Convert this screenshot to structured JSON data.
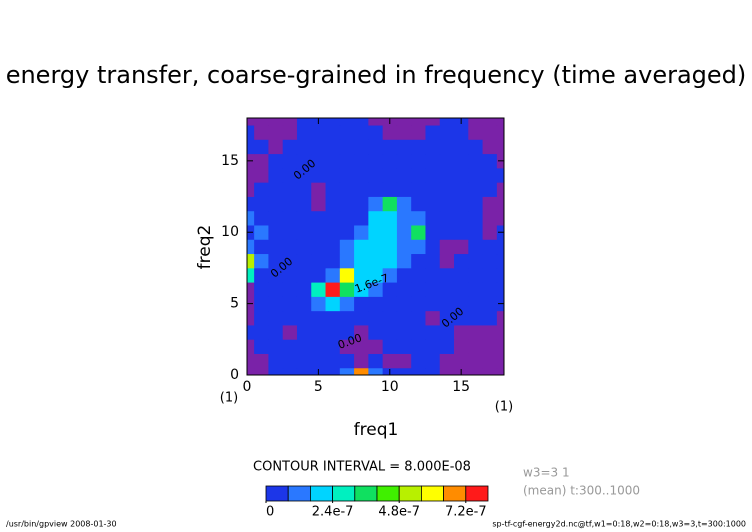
{
  "chart_data": {
    "type": "contour",
    "title": "energy transfer, coarse-grained in frequency (time averaged)",
    "x_label": "freq1",
    "y_label": "freq2",
    "x_unit": "(1)",
    "y_unit": "(1)",
    "x": [
      0,
      1,
      2,
      3,
      4,
      5,
      6,
      7,
      8,
      9,
      10,
      11,
      12,
      13,
      14,
      15,
      16,
      17,
      18
    ],
    "y": [
      0,
      1,
      2,
      3,
      4,
      5,
      6,
      7,
      8,
      9,
      10,
      11,
      12,
      13,
      14,
      15,
      16,
      17,
      18
    ],
    "xlim": [
      0,
      18
    ],
    "ylim": [
      0,
      18
    ],
    "xticks": [
      0,
      5,
      10,
      15
    ],
    "yticks": [
      0,
      5,
      10,
      15
    ],
    "z": [
      [
        -2e-08,
        -2e-08,
        4e-08,
        4e-08,
        4e-08,
        4e-08,
        4e-08,
        1.2e-07,
        6.5e-07,
        1.2e-07,
        4e-08,
        4e-08,
        4e-08,
        4e-08,
        -2e-08,
        -2e-08,
        -2e-08,
        -2e-08,
        -2e-08
      ],
      [
        -2e-08,
        -2e-08,
        4e-08,
        4e-08,
        4e-08,
        4e-08,
        4e-08,
        4e-08,
        -2e-08,
        4e-08,
        -2e-08,
        -2e-08,
        4e-08,
        4e-08,
        -2e-08,
        -2e-08,
        -2e-08,
        -2e-08,
        -2e-08
      ],
      [
        -2e-08,
        4e-08,
        4e-08,
        4e-08,
        4e-08,
        4e-08,
        4e-08,
        -2e-08,
        -2e-08,
        -2e-08,
        4e-08,
        4e-08,
        4e-08,
        4e-08,
        4e-08,
        -2e-08,
        -2e-08,
        -2e-08,
        -2e-08
      ],
      [
        4e-08,
        4e-08,
        4e-08,
        -2e-08,
        4e-08,
        4e-08,
        4e-08,
        4e-08,
        -2e-08,
        4e-08,
        4e-08,
        4e-08,
        4e-08,
        4e-08,
        4e-08,
        -2e-08,
        -2e-08,
        -2e-08,
        -2e-08
      ],
      [
        -2e-08,
        4e-08,
        4e-08,
        4e-08,
        4e-08,
        4e-08,
        4e-08,
        4e-08,
        4e-08,
        4e-08,
        4e-08,
        4e-08,
        4e-08,
        -2e-08,
        4e-08,
        4e-08,
        4e-08,
        4e-08,
        -2e-08
      ],
      [
        -2e-08,
        4e-08,
        4e-08,
        4e-08,
        4e-08,
        1e-07,
        2.3e-07,
        1.4e-07,
        4e-08,
        4e-08,
        4e-08,
        4e-08,
        4e-08,
        4e-08,
        4e-08,
        4e-08,
        4e-08,
        4e-08,
        4e-08
      ],
      [
        -2e-08,
        4e-08,
        4e-08,
        4e-08,
        4e-08,
        3e-07,
        7.5e-07,
        3.9e-07,
        2e-07,
        1e-07,
        4e-08,
        4e-08,
        4e-08,
        4e-08,
        4e-08,
        4e-08,
        4e-08,
        4e-08,
        4e-08
      ],
      [
        3e-07,
        4e-08,
        4e-08,
        4e-08,
        4e-08,
        4e-08,
        1.4e-07,
        6e-07,
        2.3e-07,
        1.7e-07,
        1.4e-07,
        4e-08,
        4e-08,
        4e-08,
        4e-08,
        4e-08,
        4e-08,
        4e-08,
        4e-08
      ],
      [
        5.5e-07,
        1e-07,
        4e-08,
        4e-08,
        4e-08,
        4e-08,
        4e-08,
        1.4e-07,
        1.8e-07,
        1.7e-07,
        2e-07,
        1.2e-07,
        4e-08,
        4e-08,
        -2e-08,
        4e-08,
        4e-08,
        4e-08,
        4e-08
      ],
      [
        1.4e-07,
        4e-08,
        4e-08,
        4e-08,
        4e-08,
        4e-08,
        4e-08,
        1e-07,
        1.7e-07,
        2e-07,
        1.8e-07,
        1.4e-07,
        1e-07,
        4e-08,
        -2e-08,
        -2e-08,
        4e-08,
        4e-08,
        4e-08
      ],
      [
        4e-08,
        1.4e-07,
        4e-08,
        4e-08,
        4e-08,
        4e-08,
        4e-08,
        4e-08,
        1.4e-07,
        2e-07,
        2.2e-07,
        1.2e-07,
        3.8e-07,
        4e-08,
        4e-08,
        4e-08,
        4e-08,
        -2e-08,
        4e-08
      ],
      [
        1e-07,
        4e-08,
        4e-08,
        4e-08,
        4e-08,
        4e-08,
        4e-08,
        4e-08,
        4e-08,
        2e-07,
        2e-07,
        1e-07,
        1.2e-07,
        4e-08,
        4e-08,
        4e-08,
        4e-08,
        -2e-08,
        -2e-08
      ],
      [
        4e-08,
        4e-08,
        4e-08,
        4e-08,
        4e-08,
        -2e-08,
        4e-08,
        4e-08,
        4e-08,
        1.2e-07,
        3.9e-07,
        1.2e-07,
        4e-08,
        4e-08,
        4e-08,
        4e-08,
        4e-08,
        -2e-08,
        -2e-08
      ],
      [
        -2e-08,
        4e-08,
        4e-08,
        4e-08,
        4e-08,
        -2e-08,
        4e-08,
        4e-08,
        4e-08,
        4e-08,
        4e-08,
        4e-08,
        4e-08,
        4e-08,
        4e-08,
        4e-08,
        4e-08,
        4e-08,
        -2e-08
      ],
      [
        -2e-08,
        -2e-08,
        4e-08,
        4e-08,
        4e-08,
        4e-08,
        4e-08,
        4e-08,
        4e-08,
        4e-08,
        4e-08,
        4e-08,
        4e-08,
        4e-08,
        4e-08,
        4e-08,
        4e-08,
        4e-08,
        4e-08
      ],
      [
        -2e-08,
        -2e-08,
        4e-08,
        4e-08,
        4e-08,
        4e-08,
        4e-08,
        4e-08,
        4e-08,
        4e-08,
        4e-08,
        4e-08,
        4e-08,
        4e-08,
        4e-08,
        4e-08,
        4e-08,
        4e-08,
        -2e-08
      ],
      [
        4e-08,
        4e-08,
        -2e-08,
        4e-08,
        4e-08,
        4e-08,
        4e-08,
        4e-08,
        4e-08,
        4e-08,
        4e-08,
        4e-08,
        4e-08,
        4e-08,
        4e-08,
        4e-08,
        4e-08,
        -2e-08,
        -2e-08
      ],
      [
        4e-08,
        -2e-08,
        -2e-08,
        -2e-08,
        4e-08,
        4e-08,
        4e-08,
        4e-08,
        4e-08,
        4e-08,
        -2e-08,
        -2e-08,
        -2e-08,
        4e-08,
        4e-08,
        4e-08,
        -2e-08,
        -2e-08,
        -2e-08
      ],
      [
        -2e-08,
        -2e-08,
        -2e-08,
        -2e-08,
        4e-08,
        4e-08,
        4e-08,
        4e-08,
        4e-08,
        -2e-08,
        -2e-08,
        -2e-08,
        -2e-08,
        -2e-08,
        4e-08,
        4e-08,
        -2e-08,
        -2e-08,
        -2e-08
      ]
    ],
    "levels": [
      0,
      8e-08,
      1.6e-07,
      2.4e-07,
      3.2e-07,
      4e-07,
      4.8e-07,
      5.6e-07,
      6.4e-07,
      7.2e-07,
      8e-07
    ],
    "colors": [
      "#1c36e8",
      "#2a78ff",
      "#00d4ff",
      "#00f0c0",
      "#10e060",
      "#40f000",
      "#b8f000",
      "#ffff00",
      "#ff8c00",
      "#ff1a1a"
    ],
    "negative_color": "#7a22a8",
    "colorbar_ticks": [
      0,
      2.4e-07,
      4.8e-07,
      7.2e-07
    ],
    "contour_interval": "CONTOUR INTERVAL = 8.000E-08",
    "contour_labels": [
      "0.00",
      "0.00",
      "1.6e-7",
      "0.00",
      "0.00"
    ],
    "info": [
      "w3=3 1",
      "(mean) t:300..1000"
    ],
    "footer_left": "/usr/bin/gpview  2008-01-30",
    "footer_right": "sp-tf-cgf-energy2d.nc@tf,w1=0:18,w2=0:18,w3=3,t=300:1000"
  }
}
